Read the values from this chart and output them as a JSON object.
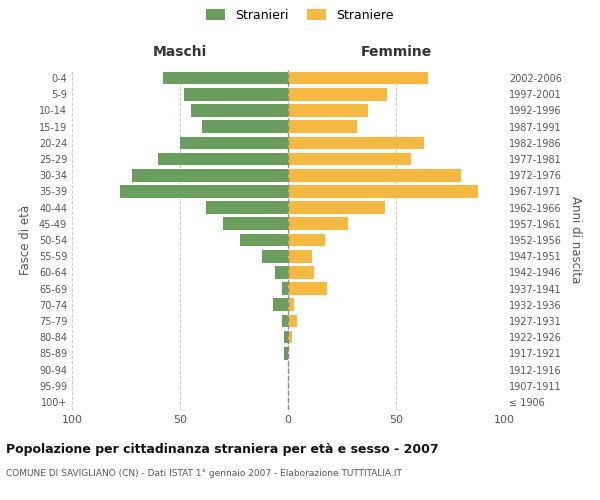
{
  "age_groups": [
    "100+",
    "95-99",
    "90-94",
    "85-89",
    "80-84",
    "75-79",
    "70-74",
    "65-69",
    "60-64",
    "55-59",
    "50-54",
    "45-49",
    "40-44",
    "35-39",
    "30-34",
    "25-29",
    "20-24",
    "15-19",
    "10-14",
    "5-9",
    "0-4"
  ],
  "birth_years": [
    "≤ 1906",
    "1907-1911",
    "1912-1916",
    "1917-1921",
    "1922-1926",
    "1927-1931",
    "1932-1936",
    "1937-1941",
    "1942-1946",
    "1947-1951",
    "1952-1956",
    "1957-1961",
    "1962-1966",
    "1967-1971",
    "1972-1976",
    "1977-1981",
    "1982-1986",
    "1987-1991",
    "1992-1996",
    "1997-2001",
    "2002-2006"
  ],
  "males": [
    0,
    0,
    0,
    2,
    2,
    3,
    7,
    3,
    6,
    12,
    22,
    30,
    38,
    78,
    72,
    60,
    50,
    40,
    45,
    48,
    58
  ],
  "females": [
    0,
    0,
    0,
    0,
    2,
    4,
    3,
    18,
    12,
    11,
    17,
    28,
    45,
    88,
    80,
    57,
    63,
    32,
    37,
    46,
    65
  ],
  "male_color": "#6a9e5e",
  "female_color": "#f5b942",
  "grid_color": "#cccccc",
  "title": "Popolazione per cittadinanza straniera per età e sesso - 2007",
  "subtitle": "COMUNE DI SAVIGLIANO (CN) - Dati ISTAT 1° gennaio 2007 - Elaborazione TUTTITALIA.IT",
  "left_label": "Maschi",
  "right_label": "Femmine",
  "left_axis_label": "Fasce di età",
  "right_axis_label": "Anni di nascita",
  "legend_male": "Stranieri",
  "legend_female": "Straniere",
  "xlim": 100
}
